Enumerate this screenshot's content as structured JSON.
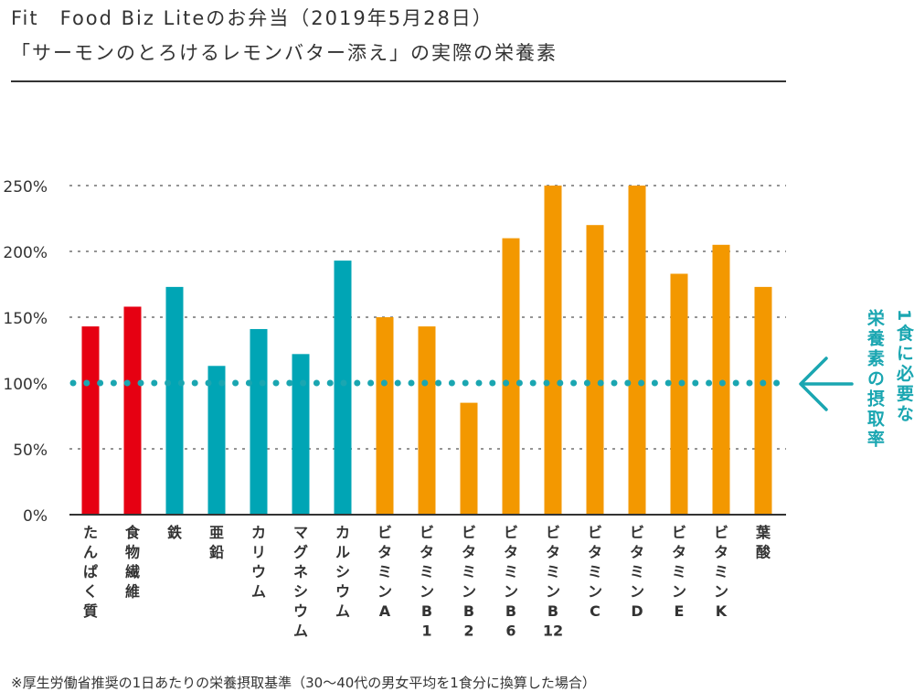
{
  "header": {
    "title_line1": "Fit　Food Biz Liteのお弁当（2019年5月28日）",
    "title_line2": "「サーモンのとろけるレモンバター添え」の実際の栄養素"
  },
  "reference": {
    "value": 100,
    "label_line1": "1食に必要な",
    "label_line2": "栄養素の摂取率",
    "arrow_icon": "arrow-left-icon",
    "color": "#1aa6b1"
  },
  "footnote": "※厚生労働省推奨の1日あたりの栄養摂取基準（30〜40代の男女平均を1食分に換算した場合）",
  "colors": {
    "red": "#e60012",
    "teal": "#00a5b5",
    "orange": "#f39800",
    "reference": "#1aa6b1",
    "text": "#333333",
    "grid": "#555555"
  },
  "chart_data": {
    "type": "bar",
    "title": "「サーモンのとろけるレモンバター添え」の実際の栄養素",
    "xlabel": "",
    "ylabel": "",
    "ylim": [
      0,
      250
    ],
    "yticks": [
      0,
      50,
      100,
      150,
      200,
      250
    ],
    "ytick_labels": [
      "0%",
      "50%",
      "100%",
      "150%",
      "200%",
      "250%"
    ],
    "grid": "horizontal-dotted",
    "legend": "none",
    "categories": [
      "たんぱく質",
      "食物繊維",
      "鉄",
      "亜鉛",
      "カリウム",
      "マグネシウム",
      "カルシウム",
      "ビタミンA",
      "ビタミンB1",
      "ビタミンB2",
      "ビタミンB6",
      "ビタミンB12",
      "ビタミンC",
      "ビタミンD",
      "ビタミンE",
      "ビタミンK",
      "葉酸"
    ],
    "category_lines": [
      [
        "た",
        "ん",
        "ぱ",
        "く",
        "質"
      ],
      [
        "食",
        "物",
        "繊",
        "維"
      ],
      [
        "鉄"
      ],
      [
        "亜",
        "鉛"
      ],
      [
        "カ",
        "リ",
        "ウ",
        "ム"
      ],
      [
        "マ",
        "グ",
        "ネ",
        "シ",
        "ウ",
        "ム"
      ],
      [
        "カ",
        "ル",
        "シ",
        "ウ",
        "ム"
      ],
      [
        "ビ",
        "タ",
        "ミ",
        "ン",
        "A"
      ],
      [
        "ビ",
        "タ",
        "ミ",
        "ン",
        "B",
        "1"
      ],
      [
        "ビ",
        "タ",
        "ミ",
        "ン",
        "B",
        "2"
      ],
      [
        "ビ",
        "タ",
        "ミ",
        "ン",
        "B",
        "6"
      ],
      [
        "ビ",
        "タ",
        "ミ",
        "ン",
        "B",
        "12"
      ],
      [
        "ビ",
        "タ",
        "ミ",
        "ン",
        "C"
      ],
      [
        "ビ",
        "タ",
        "ミ",
        "ン",
        "D"
      ],
      [
        "ビ",
        "タ",
        "ミ",
        "ン",
        "E"
      ],
      [
        "ビ",
        "タ",
        "ミ",
        "ン",
        "K"
      ],
      [
        "葉",
        "酸"
      ]
    ],
    "values": [
      143,
      158,
      173,
      113,
      141,
      122,
      193,
      150,
      143,
      85,
      210,
      250,
      220,
      250,
      183,
      205,
      173
    ],
    "colors": [
      "#e60012",
      "#e60012",
      "#00a5b5",
      "#00a5b5",
      "#00a5b5",
      "#00a5b5",
      "#00a5b5",
      "#f39800",
      "#f39800",
      "#f39800",
      "#f39800",
      "#f39800",
      "#f39800",
      "#f39800",
      "#f39800",
      "#f39800",
      "#f39800"
    ]
  }
}
